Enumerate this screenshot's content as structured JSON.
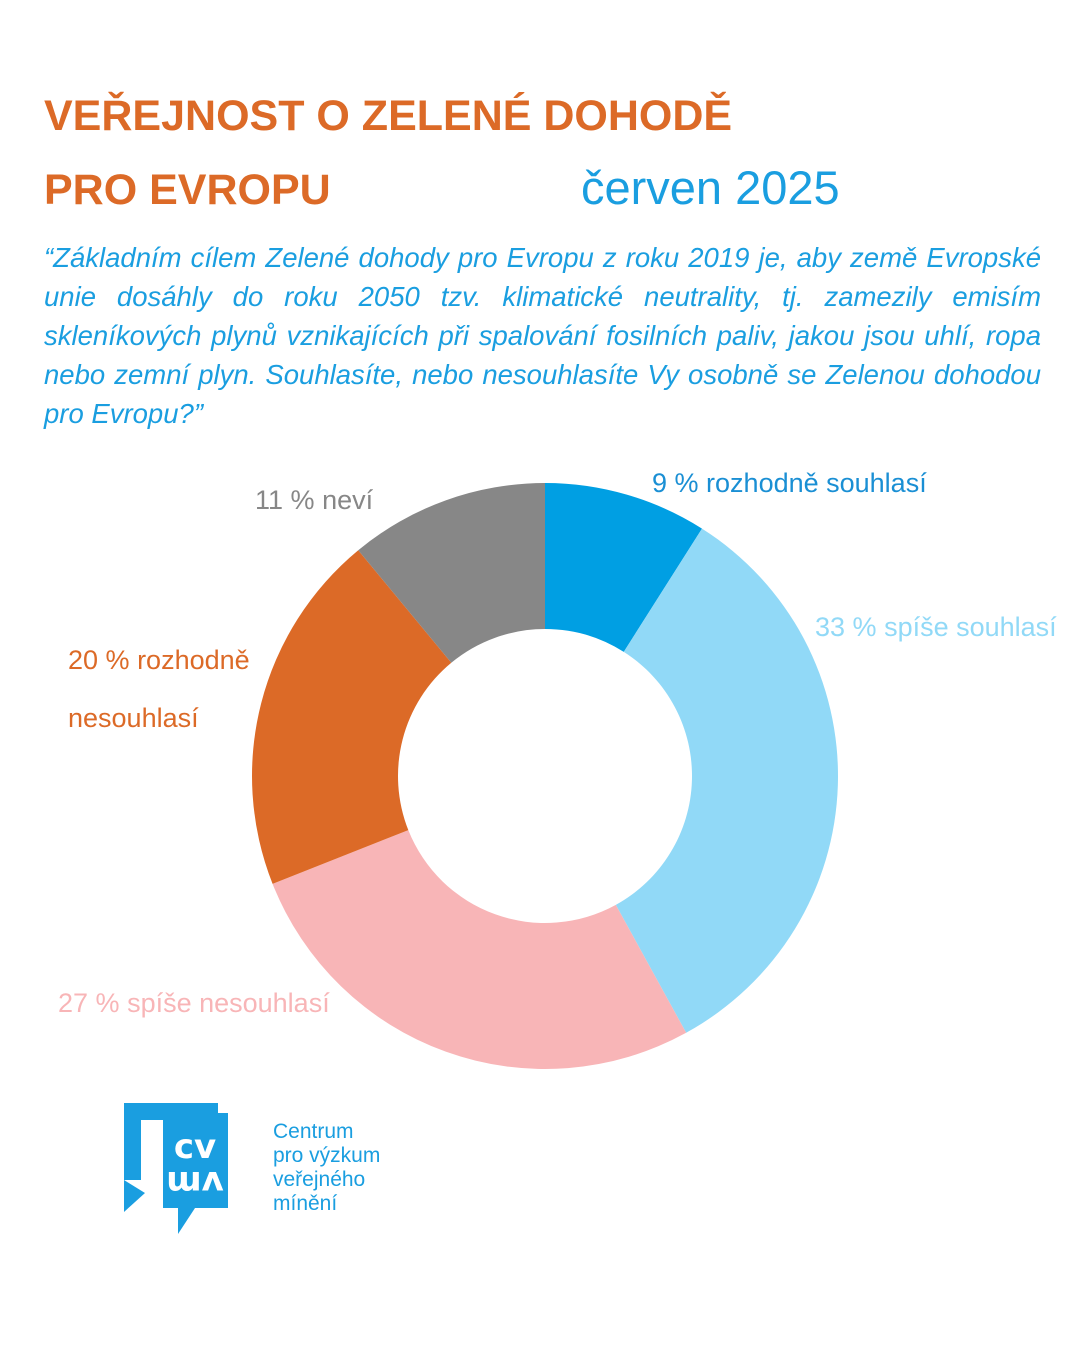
{
  "chart_data": {
    "type": "donut",
    "title": "VEŘEJNOST O ZELENÉ DOHODĚ",
    "title_line2": "PRO EVROPU",
    "subtitle": "červen 2025",
    "question": "“Základním cílem Zelené dohody pro Evropu z roku 2019 je, aby země Evropské unie dosáhly do roku 2050 tzv. klimatické neutrality, tj. zamezily emisím skleníkových plynů vznikajících při spalování fosilních paliv, jakou jsou uhlí, ropa nebo zemní plyn. Souhlasíte, nebo nesouhlasíte Vy osobně se Zelenou dohodou pro Evropu?”",
    "categories": [
      "rozhodně souhlasí",
      "spíše souhlasí",
      "spíše nesouhlasí",
      "rozhodně nesouhlasí",
      "neví"
    ],
    "values": [
      9,
      33,
      27,
      20,
      11
    ],
    "value_labels": [
      "9 %",
      "33 %",
      "27 %",
      "20 %",
      "11 %"
    ],
    "colors": [
      "#009fe3",
      "#91d9f7",
      "#f8b5b7",
      "#dc6a27",
      "#878787"
    ],
    "label_colors": [
      "#1a8fd4",
      "#91d9f7",
      "#f8b5b7",
      "#dc6a27",
      "#878787"
    ]
  },
  "logo": {
    "mark": [
      "cv",
      "vm"
    ],
    "text": [
      "Centrum",
      "pro výzkum",
      "veřejného",
      "mínění"
    ]
  }
}
